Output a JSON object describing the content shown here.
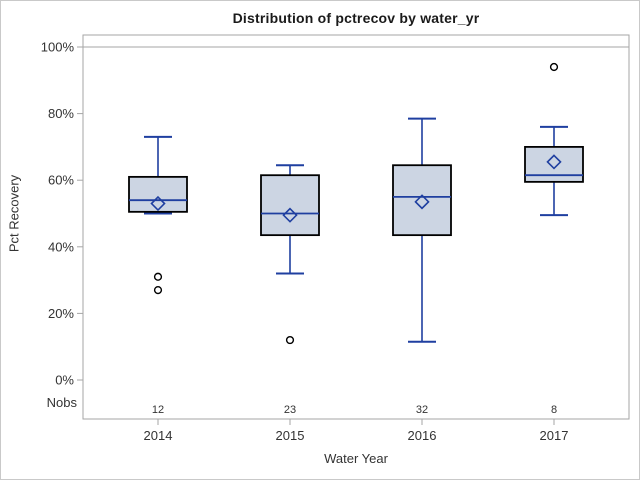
{
  "chart_data": {
    "type": "box",
    "title": "Distribution of pctrecov by water_yr",
    "xlabel": "Water Year",
    "ylabel": "Pct Recovery",
    "nobs_label": "Nobs",
    "ylim": [
      0,
      100
    ],
    "y_ticks": [
      0,
      20,
      40,
      60,
      80,
      100
    ],
    "y_tick_suffix": "%",
    "refline_y": 100,
    "grid": "off",
    "legend": "none",
    "categories": [
      "2014",
      "2015",
      "2016",
      "2017"
    ],
    "nobs": [
      "12",
      "23",
      "32",
      "8"
    ],
    "series": [
      {
        "category": "2014",
        "whisker_low": 50,
        "q1": 50.5,
        "median": 54,
        "mean": 53,
        "q3": 61,
        "whisker_high": 73,
        "outliers": [
          31,
          27
        ]
      },
      {
        "category": "2015",
        "whisker_low": 32,
        "q1": 43.5,
        "median": 50,
        "mean": 49.5,
        "q3": 61.5,
        "whisker_high": 64.5,
        "outliers": [
          12
        ]
      },
      {
        "category": "2016",
        "whisker_low": 11.5,
        "q1": 43.5,
        "median": 55,
        "mean": 53.5,
        "q3": 64.5,
        "whisker_high": 78.5,
        "outliers": []
      },
      {
        "category": "2017",
        "whisker_low": 49.5,
        "q1": 59.5,
        "median": 61.5,
        "mean": 65.5,
        "q3": 70,
        "whisker_high": 76,
        "outliers": [
          94
        ]
      }
    ],
    "colors": {
      "box_fill": "#ccd5e3",
      "box_stroke": "#000000",
      "whisker": "#1f3fa0",
      "median": "#1f3fa0",
      "mean_marker": "#1f3fa0",
      "outlier": "#000000",
      "wall_border": "#a6a6a6",
      "refline": "#a6a6a6",
      "tick": "#a6a6a6",
      "text": "#333333"
    }
  }
}
